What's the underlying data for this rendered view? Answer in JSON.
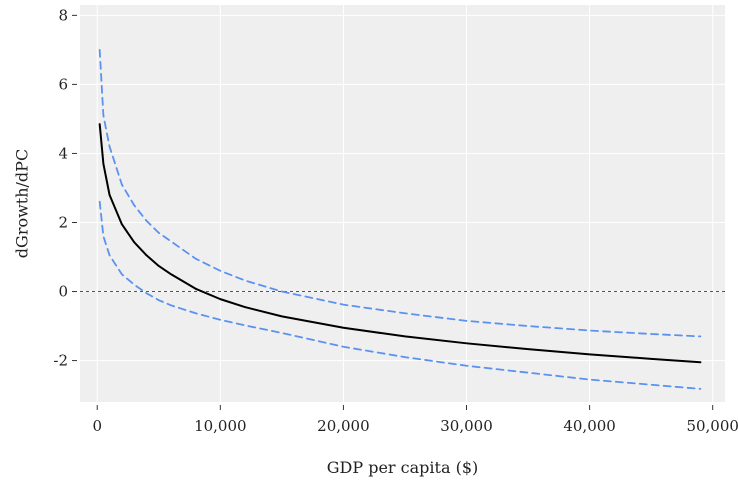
{
  "chart_data": {
    "type": "line",
    "title": "",
    "xlabel": "GDP per capita ($)",
    "ylabel": "dGrowth/dPC",
    "xlim": [
      -1400,
      51000
    ],
    "ylim": [
      -3.2,
      8.3
    ],
    "x_ticks": [
      0,
      10000,
      20000,
      30000,
      40000,
      50000
    ],
    "x_tick_labels": [
      "0",
      "10,000",
      "20,000",
      "30,000",
      "40,000",
      "50,000"
    ],
    "y_ticks": [
      -2,
      0,
      2,
      4,
      6,
      8
    ],
    "y_tick_labels": [
      "-2",
      "0",
      "2",
      "4",
      "6",
      "8"
    ],
    "grid": true,
    "background": "#efefef",
    "reference_line": {
      "y": 0,
      "style": "dotted",
      "color": "#555555"
    },
    "series": [
      {
        "role": "estimate",
        "color": "#000000",
        "style": "solid",
        "x": [
          200,
          500,
          1000,
          2000,
          3000,
          4000,
          5000,
          6000,
          8000,
          10000,
          12000,
          15000,
          20000,
          25000,
          30000,
          35000,
          40000,
          45000,
          49000
        ],
        "y": [
          4.85,
          3.7,
          2.8,
          1.95,
          1.43,
          1.05,
          0.74,
          0.5,
          0.08,
          -0.22,
          -0.45,
          -0.72,
          -1.05,
          -1.3,
          -1.5,
          -1.67,
          -1.82,
          -1.95,
          -2.05
        ]
      },
      {
        "role": "upper-bound",
        "color": "#5b92f0",
        "style": "dashed",
        "x": [
          200,
          500,
          1000,
          2000,
          3000,
          4000,
          5000,
          6000,
          8000,
          10000,
          12000,
          15000,
          20000,
          25000,
          30000,
          35000,
          40000,
          45000,
          49000
        ],
        "y": [
          7.0,
          5.1,
          4.2,
          3.1,
          2.5,
          2.05,
          1.7,
          1.45,
          0.95,
          0.6,
          0.32,
          0.0,
          -0.38,
          -0.63,
          -0.85,
          -1.0,
          -1.13,
          -1.23,
          -1.3
        ]
      },
      {
        "role": "lower-bound",
        "color": "#5b92f0",
        "style": "dashed",
        "x": [
          200,
          500,
          1000,
          2000,
          3000,
          4000,
          5000,
          6000,
          8000,
          10000,
          12000,
          15000,
          20000,
          25000,
          30000,
          35000,
          40000,
          45000,
          49000
        ],
        "y": [
          2.6,
          1.6,
          1.05,
          0.5,
          0.2,
          -0.05,
          -0.25,
          -0.4,
          -0.63,
          -0.82,
          -0.98,
          -1.2,
          -1.6,
          -1.9,
          -2.15,
          -2.35,
          -2.55,
          -2.7,
          -2.82
        ]
      }
    ]
  }
}
